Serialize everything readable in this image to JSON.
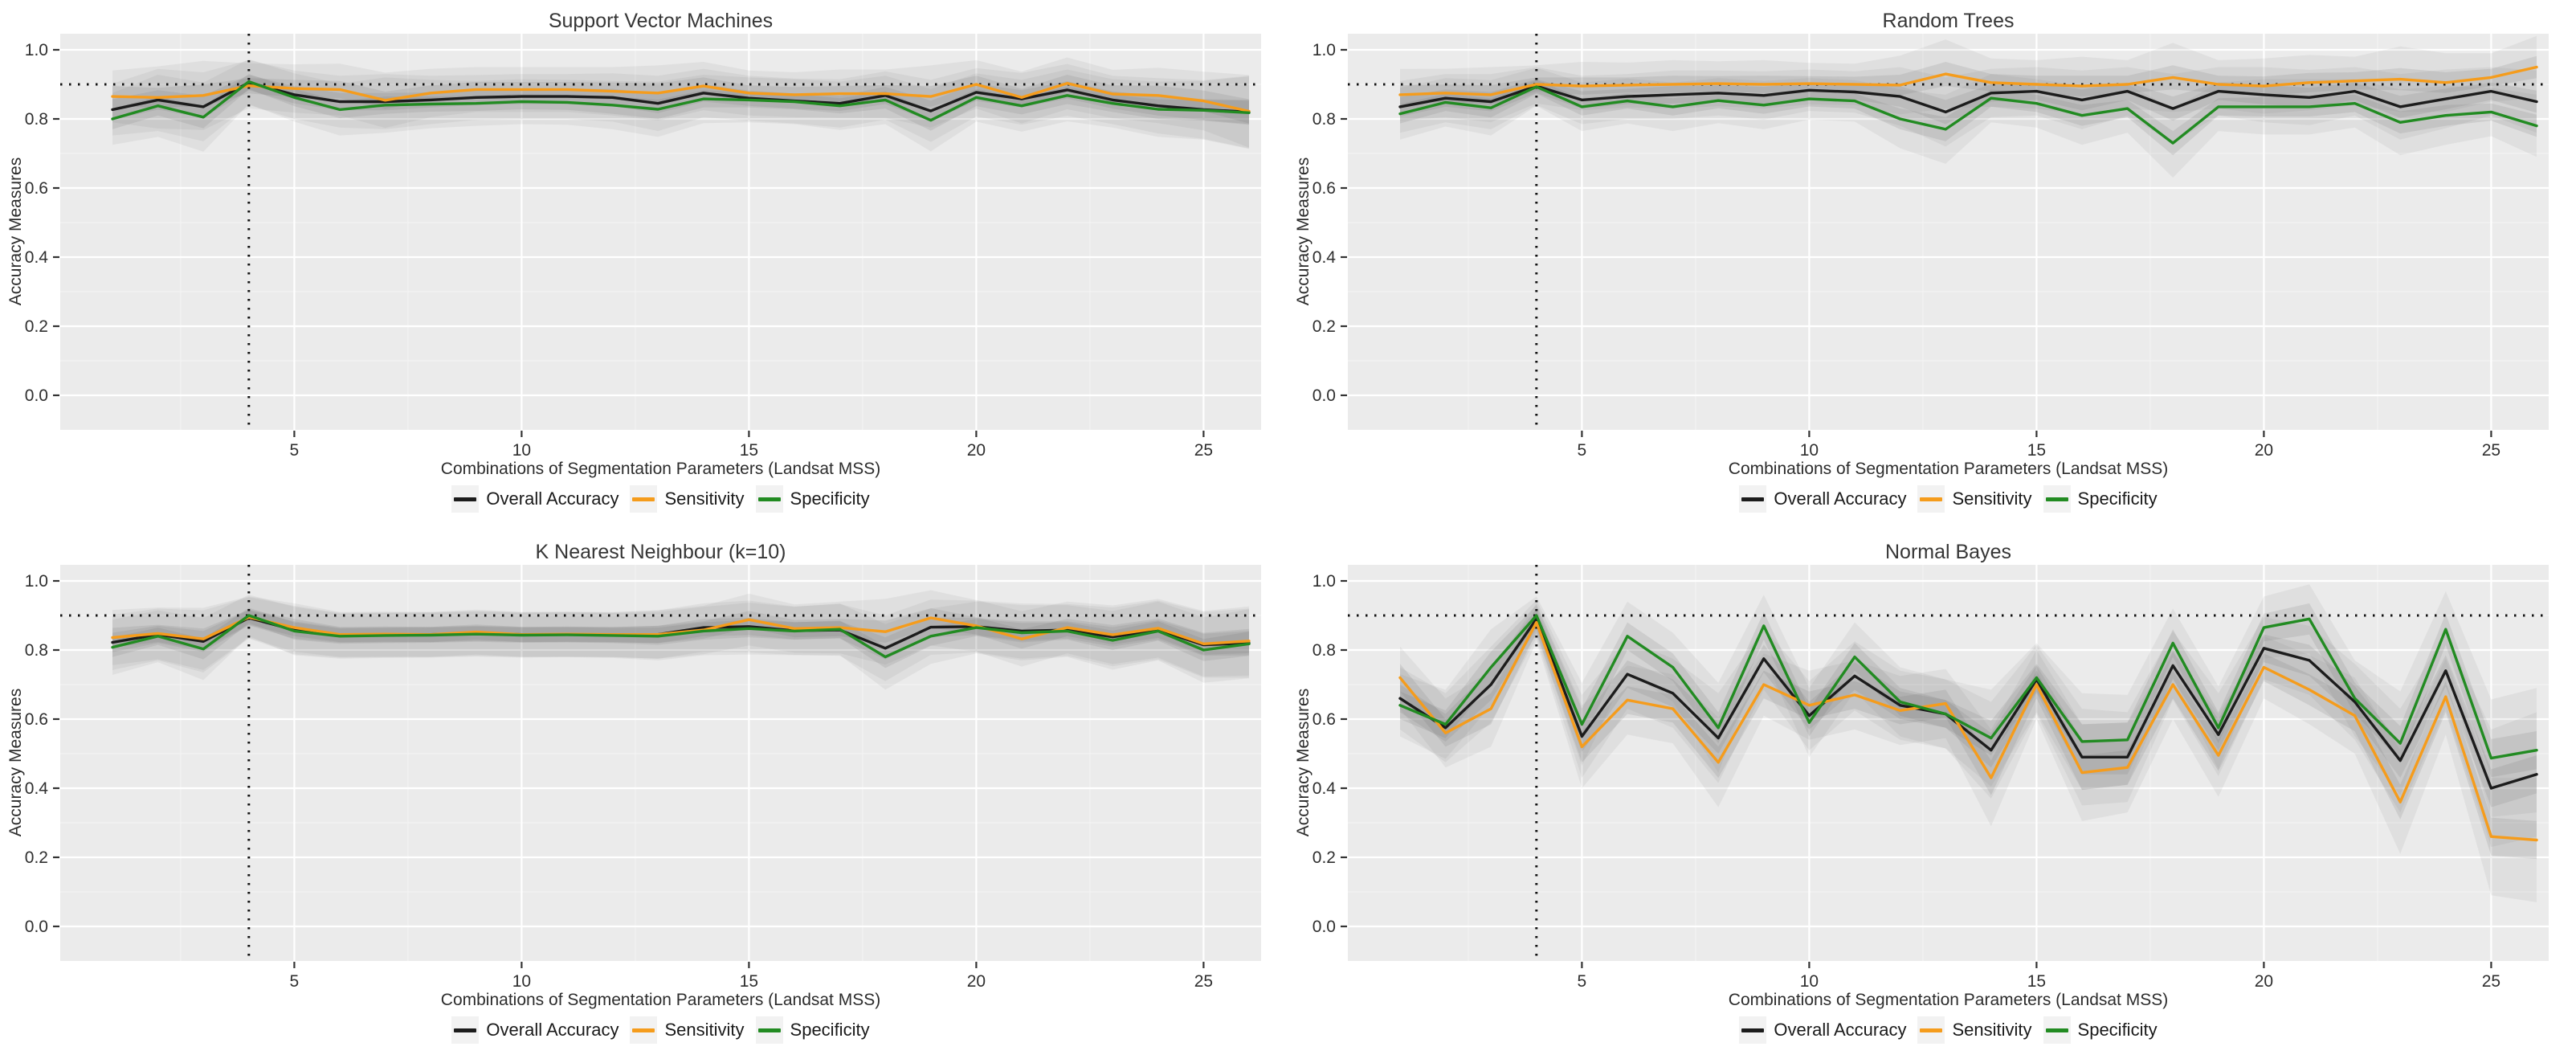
{
  "shared": {
    "ylabel": "Accuracy Measures",
    "xlabel": "Combinations of Segmentation Parameters (Landsat MSS)",
    "x_values": [
      1,
      2,
      3,
      4,
      5,
      6,
      7,
      8,
      9,
      10,
      11,
      12,
      13,
      14,
      15,
      16,
      17,
      18,
      19,
      20,
      21,
      22,
      23,
      24,
      25,
      26
    ],
    "x_ticks": [
      {
        "v": 5,
        "label": "5"
      },
      {
        "v": 10,
        "label": "10"
      },
      {
        "v": 15,
        "label": "15"
      },
      {
        "v": 20,
        "label": "20"
      },
      {
        "v": 25,
        "label": "25"
      }
    ],
    "x_minor": [
      2.5,
      7.5,
      12.5,
      17.5,
      22.5
    ],
    "y_ticks": [
      {
        "v": 0.0,
        "label": "0.0"
      },
      {
        "v": 0.2,
        "label": "0.2"
      },
      {
        "v": 0.4,
        "label": "0.4"
      },
      {
        "v": 0.6,
        "label": "0.6"
      },
      {
        "v": 0.8,
        "label": "0.8"
      },
      {
        "v": 1.0,
        "label": "1.0"
      }
    ],
    "y_minor": [
      0.1,
      0.3,
      0.5,
      0.7,
      0.9
    ],
    "ref_lines": {
      "horizontal_y": 0.9,
      "vertical_x": 4
    },
    "legend": [
      {
        "label": "Overall Accuracy",
        "color": "#1c1c1c"
      },
      {
        "label": "Sensitivity",
        "color": "#f59c1c"
      },
      {
        "label": "Specificity",
        "color": "#228b22"
      }
    ],
    "colors": {
      "overall": "#1c1c1c",
      "sensitivity": "#f59c1c",
      "specificity": "#228b22",
      "panel_bg": "#ebebeb",
      "grid_major": "#ffffff",
      "grid_minor": "#f3f3f3",
      "band": "#6e6e6e",
      "ref_line": "#111111"
    },
    "ylim": [
      0,
      1
    ]
  },
  "chart_data": [
    {
      "type": "line",
      "title": "Support Vector Machines",
      "series": [
        {
          "name": "Overall Accuracy",
          "color": "#1c1c1c",
          "values": [
            0.827,
            0.855,
            0.835,
            0.905,
            0.87,
            0.85,
            0.85,
            0.855,
            0.862,
            0.865,
            0.865,
            0.862,
            0.845,
            0.875,
            0.86,
            0.852,
            0.845,
            0.868,
            0.823,
            0.877,
            0.858,
            0.884,
            0.855,
            0.838,
            0.827,
            0.82
          ]
        },
        {
          "name": "Sensitivity",
          "color": "#f59c1c",
          "values": [
            0.865,
            0.862,
            0.868,
            0.896,
            0.888,
            0.885,
            0.854,
            0.875,
            0.885,
            0.885,
            0.885,
            0.88,
            0.875,
            0.895,
            0.875,
            0.87,
            0.873,
            0.873,
            0.865,
            0.9,
            0.862,
            0.903,
            0.872,
            0.868,
            0.852,
            0.822
          ]
        },
        {
          "name": "Specificity",
          "color": "#228b22",
          "values": [
            0.8,
            0.838,
            0.805,
            0.908,
            0.862,
            0.827,
            0.84,
            0.843,
            0.845,
            0.85,
            0.848,
            0.84,
            0.828,
            0.858,
            0.855,
            0.85,
            0.838,
            0.855,
            0.796,
            0.862,
            0.838,
            0.868,
            0.845,
            0.828,
            0.825,
            0.818
          ]
        }
      ],
      "band_inner": [
        0.03,
        0.028,
        0.032,
        0.022,
        0.025,
        0.025,
        0.025,
        0.022,
        0.022,
        0.022,
        0.022,
        0.025,
        0.028,
        0.025,
        0.022,
        0.022,
        0.022,
        0.025,
        0.03,
        0.025,
        0.025,
        0.025,
        0.025,
        0.028,
        0.03,
        0.035
      ],
      "band_outer": [
        0.075,
        0.09,
        0.1,
        0.065,
        0.07,
        0.075,
        0.08,
        0.07,
        0.065,
        0.065,
        0.065,
        0.07,
        0.08,
        0.07,
        0.065,
        0.065,
        0.07,
        0.07,
        0.09,
        0.07,
        0.075,
        0.075,
        0.07,
        0.08,
        0.085,
        0.105
      ]
    },
    {
      "type": "line",
      "title": "Random Trees",
      "series": [
        {
          "name": "Overall Accuracy",
          "color": "#1c1c1c",
          "values": [
            0.835,
            0.86,
            0.85,
            0.895,
            0.855,
            0.865,
            0.87,
            0.875,
            0.868,
            0.883,
            0.878,
            0.865,
            0.82,
            0.875,
            0.88,
            0.855,
            0.88,
            0.83,
            0.88,
            0.87,
            0.862,
            0.88,
            0.835,
            0.858,
            0.88,
            0.85
          ]
        },
        {
          "name": "Sensitivity",
          "color": "#f59c1c",
          "values": [
            0.87,
            0.875,
            0.87,
            0.9,
            0.895,
            0.898,
            0.9,
            0.902,
            0.9,
            0.902,
            0.9,
            0.898,
            0.93,
            0.905,
            0.9,
            0.895,
            0.9,
            0.92,
            0.9,
            0.895,
            0.905,
            0.91,
            0.915,
            0.905,
            0.92,
            0.95
          ]
        },
        {
          "name": "Specificity",
          "color": "#228b22",
          "values": [
            0.815,
            0.848,
            0.832,
            0.893,
            0.835,
            0.852,
            0.835,
            0.853,
            0.84,
            0.858,
            0.852,
            0.8,
            0.77,
            0.86,
            0.845,
            0.81,
            0.83,
            0.73,
            0.835,
            0.835,
            0.835,
            0.845,
            0.79,
            0.81,
            0.82,
            0.78
          ]
        }
      ],
      "band_inner": [
        0.028,
        0.025,
        0.028,
        0.02,
        0.025,
        0.022,
        0.025,
        0.022,
        0.025,
        0.022,
        0.022,
        0.03,
        0.035,
        0.025,
        0.025,
        0.03,
        0.025,
        0.035,
        0.025,
        0.028,
        0.028,
        0.025,
        0.032,
        0.03,
        0.025,
        0.032
      ],
      "band_outer": [
        0.075,
        0.07,
        0.08,
        0.055,
        0.07,
        0.065,
        0.07,
        0.065,
        0.07,
        0.06,
        0.06,
        0.085,
        0.1,
        0.07,
        0.07,
        0.085,
        0.07,
        0.1,
        0.07,
        0.08,
        0.08,
        0.07,
        0.095,
        0.085,
        0.07,
        0.09
      ]
    },
    {
      "type": "line",
      "title": "K Nearest Neighbour (k=10)",
      "series": [
        {
          "name": "Overall Accuracy",
          "color": "#1c1c1c",
          "values": [
            0.822,
            0.845,
            0.825,
            0.893,
            0.858,
            0.843,
            0.844,
            0.845,
            0.848,
            0.845,
            0.845,
            0.844,
            0.845,
            0.865,
            0.868,
            0.856,
            0.858,
            0.805,
            0.866,
            0.868,
            0.855,
            0.858,
            0.838,
            0.858,
            0.815,
            0.82
          ]
        },
        {
          "name": "Sensitivity",
          "color": "#f59c1c",
          "values": [
            0.836,
            0.848,
            0.832,
            0.895,
            0.865,
            0.845,
            0.846,
            0.845,
            0.852,
            0.845,
            0.846,
            0.845,
            0.845,
            0.858,
            0.888,
            0.862,
            0.865,
            0.853,
            0.893,
            0.87,
            0.832,
            0.865,
            0.844,
            0.863,
            0.818,
            0.826
          ]
        },
        {
          "name": "Specificity",
          "color": "#228b22",
          "values": [
            0.808,
            0.84,
            0.803,
            0.9,
            0.855,
            0.84,
            0.842,
            0.843,
            0.846,
            0.843,
            0.844,
            0.842,
            0.84,
            0.855,
            0.862,
            0.855,
            0.86,
            0.78,
            0.84,
            0.865,
            0.85,
            0.855,
            0.828,
            0.855,
            0.8,
            0.818
          ]
        }
      ],
      "band_inner": [
        0.028,
        0.025,
        0.03,
        0.022,
        0.025,
        0.022,
        0.022,
        0.022,
        0.022,
        0.022,
        0.022,
        0.022,
        0.025,
        0.025,
        0.025,
        0.025,
        0.025,
        0.032,
        0.028,
        0.025,
        0.028,
        0.025,
        0.028,
        0.028,
        0.032,
        0.035
      ],
      "band_outer": [
        0.08,
        0.075,
        0.09,
        0.06,
        0.07,
        0.065,
        0.065,
        0.065,
        0.065,
        0.065,
        0.065,
        0.065,
        0.07,
        0.07,
        0.075,
        0.07,
        0.075,
        0.095,
        0.08,
        0.075,
        0.08,
        0.075,
        0.085,
        0.085,
        0.095,
        0.1
      ]
    },
    {
      "type": "line",
      "title": "Normal Bayes",
      "series": [
        {
          "name": "Overall Accuracy",
          "color": "#1c1c1c",
          "values": [
            0.66,
            0.575,
            0.7,
            0.89,
            0.55,
            0.73,
            0.675,
            0.545,
            0.775,
            0.61,
            0.725,
            0.64,
            0.615,
            0.51,
            0.715,
            0.49,
            0.49,
            0.755,
            0.555,
            0.805,
            0.77,
            0.65,
            0.48,
            0.74,
            0.4,
            0.44
          ]
        },
        {
          "name": "Sensitivity",
          "color": "#f59c1c",
          "values": [
            0.72,
            0.56,
            0.63,
            0.88,
            0.52,
            0.655,
            0.63,
            0.475,
            0.7,
            0.64,
            0.67,
            0.625,
            0.645,
            0.43,
            0.7,
            0.445,
            0.46,
            0.7,
            0.495,
            0.75,
            0.685,
            0.61,
            0.36,
            0.665,
            0.26,
            0.25
          ]
        },
        {
          "name": "Specificity",
          "color": "#228b22",
          "values": [
            0.64,
            0.585,
            0.75,
            0.9,
            0.585,
            0.84,
            0.75,
            0.575,
            0.87,
            0.59,
            0.78,
            0.65,
            0.615,
            0.545,
            0.72,
            0.535,
            0.54,
            0.82,
            0.575,
            0.865,
            0.89,
            0.66,
            0.53,
            0.86,
            0.487,
            0.51
          ]
        }
      ],
      "band_inner": [
        0.04,
        0.04,
        0.045,
        0.03,
        0.045,
        0.04,
        0.04,
        0.045,
        0.04,
        0.04,
        0.04,
        0.04,
        0.04,
        0.05,
        0.04,
        0.05,
        0.05,
        0.04,
        0.045,
        0.04,
        0.045,
        0.045,
        0.05,
        0.045,
        0.055,
        0.055
      ],
      "band_outer": [
        0.09,
        0.1,
        0.11,
        0.055,
        0.12,
        0.1,
        0.1,
        0.13,
        0.09,
        0.1,
        0.1,
        0.1,
        0.1,
        0.14,
        0.1,
        0.14,
        0.13,
        0.1,
        0.12,
        0.09,
        0.1,
        0.11,
        0.15,
        0.11,
        0.17,
        0.18
      ]
    }
  ]
}
